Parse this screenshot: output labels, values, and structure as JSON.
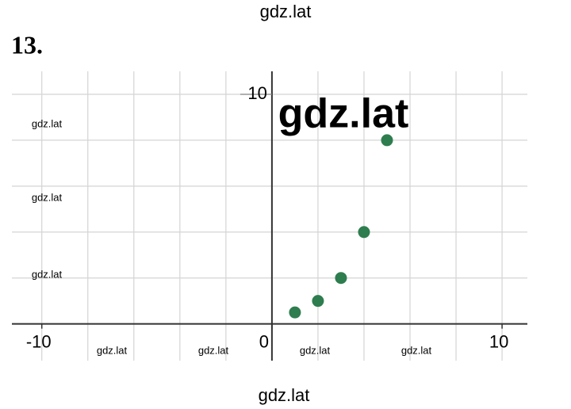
{
  "header": {
    "site": "gdz.lat",
    "problem": "13."
  },
  "chart_data": {
    "type": "scatter",
    "x": [
      1,
      2,
      3,
      4,
      5
    ],
    "values": [
      0.5,
      1,
      2,
      4,
      8
    ],
    "color": "#2e7d4f",
    "xlim": [
      -11.3,
      11.1
    ],
    "ylim": [
      -1.6,
      11
    ],
    "xticks": [
      -10,
      0,
      10
    ],
    "yticks": [
      10
    ],
    "x_gridlines": [
      -10,
      -8,
      -6,
      -4,
      -2,
      2,
      4,
      6,
      8,
      10
    ],
    "y_gridlines": [
      2,
      4,
      6,
      8,
      10
    ],
    "grid": true
  },
  "watermarks": {
    "big": "gdz.lat",
    "small": [
      "gdz.lat",
      "gdz.lat",
      "gdz.lat",
      "gdz.lat",
      "gdz.lat",
      "gdz.lat",
      "gdz.lat"
    ]
  },
  "footer": "gdz.lat"
}
